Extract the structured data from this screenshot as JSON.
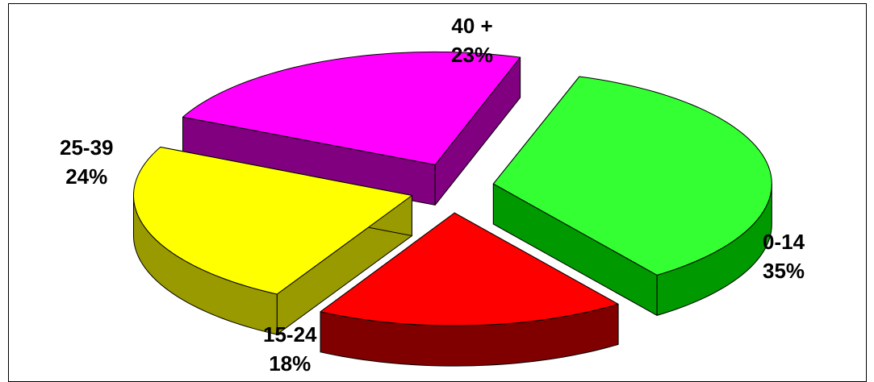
{
  "chart_data": {
    "type": "pie",
    "style": "3d-exploded",
    "title": "",
    "slices": [
      {
        "label": "0-14",
        "percent_label": "35%",
        "value": 35,
        "top_color": "#33ff33",
        "side_color": "#009900"
      },
      {
        "label": "15-24",
        "percent_label": "18%",
        "value": 18,
        "top_color": "#ff0000",
        "side_color": "#800000"
      },
      {
        "label": "25-39",
        "percent_label": "24%",
        "value": 24,
        "top_color": "#ffff00",
        "side_color": "#999900"
      },
      {
        "label": "40 +",
        "percent_label": "23%",
        "value": 23,
        "top_color": "#ff00ff",
        "side_color": "#800080"
      }
    ],
    "legend": "none"
  }
}
